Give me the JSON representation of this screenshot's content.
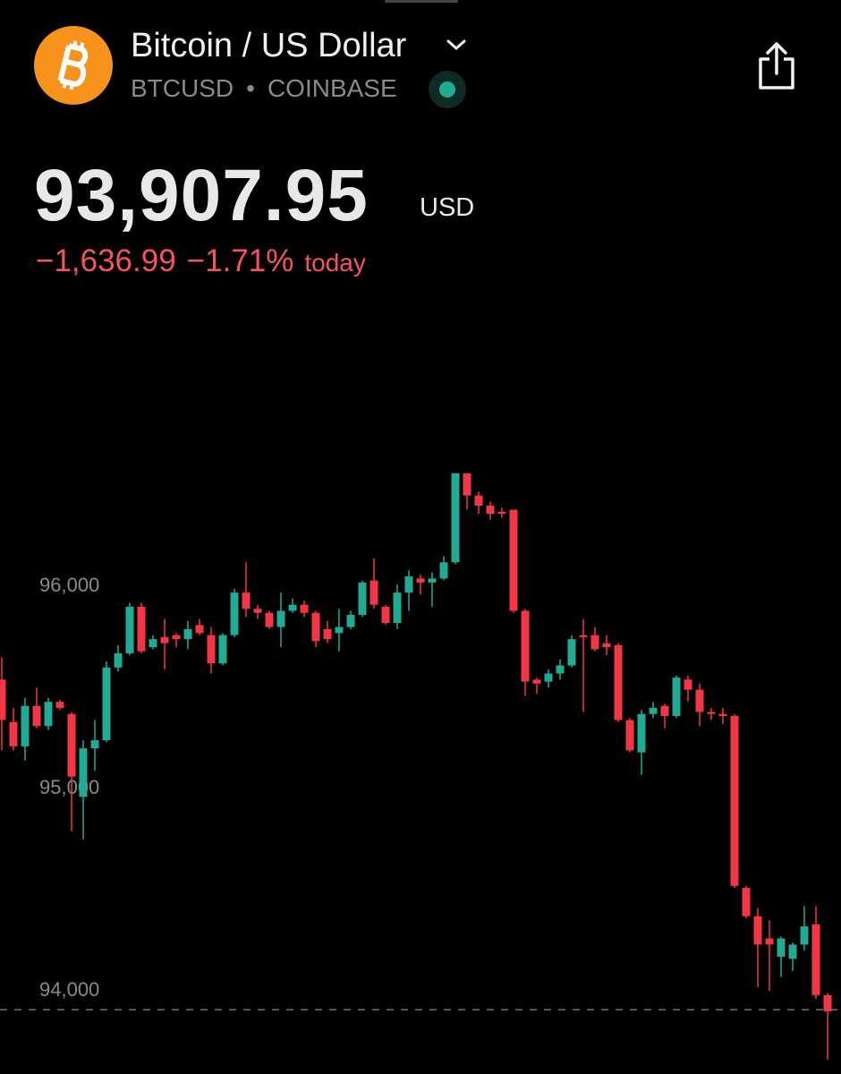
{
  "header": {
    "title": "Bitcoin / US Dollar",
    "symbol": "BTCUSD",
    "separator": "•",
    "exchange": "COINBASE",
    "price": "93,907.95",
    "currency": "USD",
    "change": "−1,636.99",
    "change_percent": "−1.71%",
    "period": "today"
  },
  "chart_data": {
    "type": "candlestick",
    "up_color": "#22ab94",
    "down_color": "#f23645",
    "ylim": [
      93590,
      97130
    ],
    "yticks": [
      {
        "value": 94000,
        "label": "94,000"
      },
      {
        "value": 95000,
        "label": "95,000"
      },
      {
        "value": 96000,
        "label": "96,000"
      }
    ],
    "last_price": 93907.95,
    "open": [
      95540,
      95330,
      95210,
      95410,
      95310,
      95430,
      95370,
      94960,
      95200,
      95240,
      95600,
      95670,
      95900,
      95700,
      95750,
      95760,
      95740,
      95810,
      95760,
      95620,
      95760,
      95970,
      95890,
      95870,
      95800,
      95880,
      95910,
      95870,
      95790,
      95770,
      95800,
      95860,
      96030,
      95900,
      95820,
      95970,
      96040,
      96020,
      96040,
      96120,
      96560,
      96450,
      96400,
      96370,
      96380,
      95880,
      95540,
      95530,
      95570,
      95610,
      95760,
      95760,
      95720,
      95710,
      95340,
      95180,
      95370,
      95410,
      95360,
      95540,
      95490,
      95380,
      95370,
      95360,
      94510,
      94370,
      94260,
      94170,
      94160,
      94230,
      94330,
      93980
    ],
    "high": [
      95650,
      95400,
      95450,
      95500,
      95450,
      95440,
      95380,
      95240,
      95340,
      95630,
      95710,
      95920,
      95920,
      95760,
      95840,
      95770,
      95830,
      95840,
      95800,
      95770,
      95990,
      96120,
      95910,
      95880,
      95970,
      95940,
      95930,
      95880,
      95830,
      95890,
      95880,
      96030,
      96140,
      95910,
      96010,
      96080,
      96060,
      96070,
      96150,
      96560,
      96560,
      96470,
      96420,
      96390,
      96380,
      95890,
      95550,
      95590,
      95640,
      95760,
      95840,
      95800,
      95760,
      95720,
      95350,
      95390,
      95430,
      95420,
      95560,
      95560,
      95520,
      95400,
      95400,
      95370,
      94520,
      94410,
      94350,
      94270,
      94240,
      94420,
      94420,
      93990
    ],
    "low": [
      95190,
      95190,
      95140,
      95300,
      95290,
      95390,
      94790,
      94750,
      95090,
      95230,
      95580,
      95660,
      95670,
      95690,
      95590,
      95700,
      95690,
      95760,
      95570,
      95610,
      95750,
      95850,
      95840,
      95790,
      95700,
      95870,
      95850,
      95700,
      95720,
      95680,
      95790,
      95850,
      95890,
      95810,
      95790,
      95880,
      95960,
      95900,
      96030,
      96110,
      96380,
      96360,
      96330,
      96340,
      95870,
      95460,
      95470,
      95500,
      95540,
      95600,
      95380,
      95680,
      95660,
      95330,
      95180,
      95070,
      95350,
      95300,
      95350,
      95430,
      95310,
      95340,
      95320,
      94510,
      94360,
      94020,
      94000,
      94070,
      94100,
      94200,
      93960,
      93660
    ],
    "close": [
      95340,
      95210,
      95410,
      95310,
      95430,
      95400,
      95060,
      95200,
      95240,
      95600,
      95670,
      95900,
      95680,
      95740,
      95720,
      95740,
      95790,
      95770,
      95620,
      95760,
      95970,
      95890,
      95870,
      95800,
      95880,
      95910,
      95870,
      95730,
      95740,
      95800,
      95860,
      96020,
      95910,
      95820,
      95970,
      96050,
      96020,
      96040,
      96120,
      96560,
      96450,
      96400,
      96360,
      96360,
      95880,
      95530,
      95520,
      95570,
      95610,
      95740,
      95750,
      95690,
      95700,
      95340,
      95190,
      95370,
      95400,
      95360,
      95550,
      95490,
      95380,
      95370,
      95360,
      94520,
      94370,
      94230,
      94230,
      94260,
      94230,
      94320,
      93980,
      93900
    ]
  }
}
